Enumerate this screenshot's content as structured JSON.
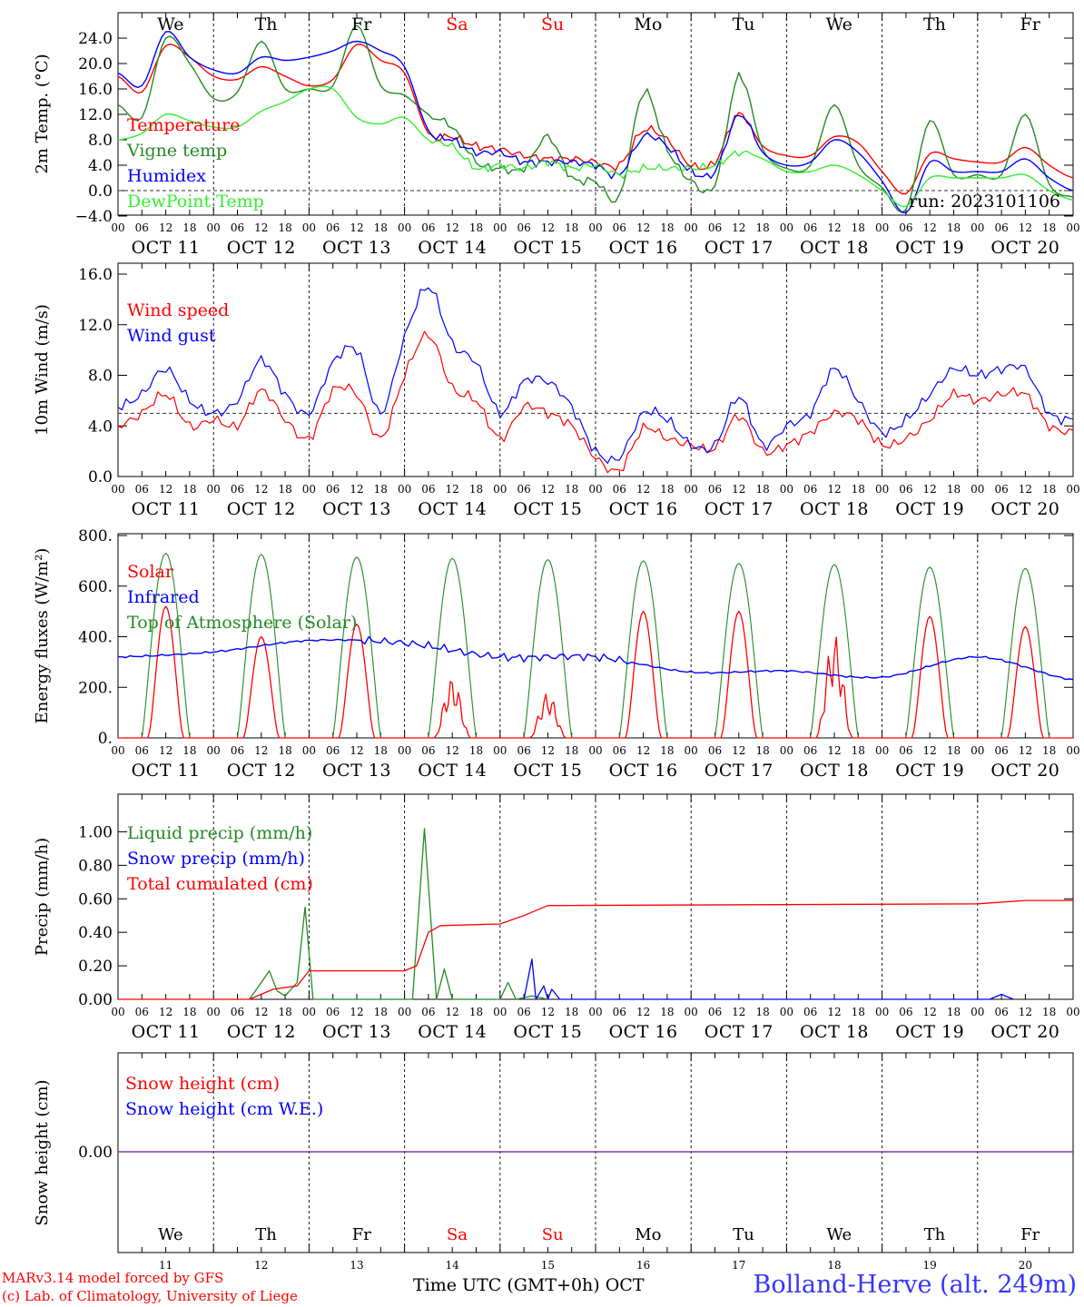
{
  "colors": {
    "temperature": "#ff0000",
    "vigne": "#228b22",
    "humidex": "#0000ff",
    "dewpoint": "#33ee33",
    "weekend": "#ff0000",
    "snow_cm": "#ff0000",
    "snow_we": "#0000ff",
    "station": "#3535ff"
  },
  "x_axis": {
    "hour_ticks": [
      "00",
      "06",
      "12",
      "18"
    ],
    "dates": [
      "OCT 11",
      "OCT 12",
      "OCT 13",
      "OCT 14",
      "OCT 15",
      "OCT 16",
      "OCT 17",
      "OCT 18",
      "OCT 19",
      "OCT 20"
    ],
    "weekdays": [
      "We",
      "Th",
      "Fr",
      "Sa",
      "Su",
      "Mo",
      "Tu",
      "We",
      "Th",
      "Fr"
    ],
    "weekend_days": [
      "Sa",
      "Su"
    ],
    "day_numbers": [
      "11",
      "12",
      "13",
      "14",
      "15",
      "16",
      "17",
      "18",
      "19",
      "20"
    ]
  },
  "footer": {
    "model": "MARv3.14 model forced by GFS",
    "copyright": "(c) Lab. of Climatology, University of Liege",
    "axis_title": "Time UTC (GMT+0h) OCT",
    "station": "Bolland-Herve (alt. 249m)"
  },
  "chart_data": [
    {
      "type": "line",
      "ylabel": "2m Temp. (°C)",
      "ylim": [
        -4,
        26
      ],
      "yticks": [
        -4,
        0,
        4,
        8,
        12,
        16,
        20,
        24
      ],
      "ytick_labels": [
        "−4.0",
        "0.0",
        "4.0",
        "8.0",
        "12.0",
        "16.0",
        "20.0",
        "24.0"
      ],
      "reference_line": 0,
      "annotation": "run: 2023101106",
      "x": [
        "2023-10-11 00:00",
        "2023-10-11 06:00",
        "2023-10-11 12:00",
        "2023-10-11 18:00",
        "2023-10-12 00:00",
        "2023-10-12 06:00",
        "2023-10-12 12:00",
        "2023-10-12 18:00",
        "2023-10-13 00:00",
        "2023-10-13 06:00",
        "2023-10-13 12:00",
        "2023-10-13 18:00",
        "2023-10-14 00:00",
        "2023-10-14 06:00",
        "2023-10-14 12:00",
        "2023-10-14 18:00",
        "2023-10-15 00:00",
        "2023-10-15 06:00",
        "2023-10-15 12:00",
        "2023-10-15 18:00",
        "2023-10-16 00:00",
        "2023-10-16 06:00",
        "2023-10-16 12:00",
        "2023-10-16 18:00",
        "2023-10-17 00:00",
        "2023-10-17 06:00",
        "2023-10-17 12:00",
        "2023-10-17 18:00",
        "2023-10-18 00:00",
        "2023-10-18 06:00",
        "2023-10-18 12:00",
        "2023-10-18 18:00",
        "2023-10-19 00:00",
        "2023-10-19 06:00",
        "2023-10-19 12:00",
        "2023-10-19 18:00",
        "2023-10-20 00:00",
        "2023-10-20 06:00",
        "2023-10-20 12:00",
        "2023-10-20 18:00",
        "2023-10-21 00:00"
      ],
      "series": [
        {
          "name": "Temperature",
          "color": "#ff0000",
          "values": [
            18.0,
            15.5,
            22.8,
            21.0,
            18.0,
            17.5,
            19.5,
            18.0,
            16.5,
            17.5,
            23.0,
            20.5,
            18.5,
            9.0,
            8.5,
            7.0,
            6.5,
            5.5,
            5.0,
            5.0,
            4.5,
            4.0,
            9.5,
            8.0,
            4.0,
            4.5,
            12.0,
            7.0,
            5.5,
            5.5,
            8.5,
            7.5,
            3.0,
            -0.5,
            5.8,
            5.0,
            4.5,
            4.5,
            6.8,
            4.0,
            2.0
          ]
        },
        {
          "name": "Vigne temp",
          "color": "#228b22",
          "values": [
            13.5,
            11.5,
            24.0,
            20.0,
            14.5,
            15.5,
            23.5,
            16.0,
            16.0,
            16.5,
            26.0,
            16.5,
            15.0,
            12.0,
            10.0,
            4.5,
            3.5,
            3.5,
            8.5,
            2.0,
            1.5,
            -1.0,
            15.5,
            6.5,
            1.5,
            1.0,
            18.0,
            6.5,
            3.5,
            4.0,
            13.5,
            4.0,
            0.5,
            -3.0,
            11.0,
            2.5,
            2.5,
            2.5,
            12.0,
            1.0,
            -1.0
          ]
        },
        {
          "name": "Humidex",
          "color": "#0000ff",
          "values": [
            18.5,
            16.5,
            25.0,
            21.0,
            19.0,
            18.5,
            21.0,
            20.5,
            21.0,
            22.0,
            23.5,
            22.0,
            19.5,
            9.5,
            8.0,
            6.0,
            6.0,
            4.5,
            4.5,
            4.5,
            4.0,
            2.5,
            8.5,
            7.0,
            3.0,
            3.0,
            12.0,
            6.0,
            4.0,
            4.5,
            8.0,
            6.0,
            1.5,
            -3.5,
            4.5,
            3.0,
            3.0,
            3.0,
            5.0,
            2.0,
            0.0
          ]
        },
        {
          "name": "DewPoint Temp",
          "color": "#33ee33",
          "values": [
            8.0,
            9.0,
            12.0,
            11.0,
            10.0,
            10.0,
            12.5,
            14.0,
            16.0,
            16.0,
            11.5,
            10.5,
            11.5,
            8.0,
            7.0,
            3.5,
            4.0,
            3.5,
            4.5,
            3.5,
            4.0,
            2.5,
            3.5,
            3.5,
            3.5,
            4.0,
            6.0,
            5.0,
            3.0,
            3.0,
            4.0,
            2.5,
            0.0,
            -2.5,
            2.0,
            2.0,
            2.0,
            2.0,
            2.5,
            0.0,
            -1.5
          ]
        }
      ]
    },
    {
      "type": "line",
      "ylabel": "10m Wind (m/s)",
      "ylim": [
        0,
        16
      ],
      "yticks": [
        0,
        4,
        8,
        12,
        16
      ],
      "ytick_labels": [
        "0.0",
        "4.0",
        "8.0",
        "12.0",
        "16.0"
      ],
      "reference_line": 5,
      "x": [
        "2023-10-11 00:00",
        "2023-10-11 06:00",
        "2023-10-11 12:00",
        "2023-10-11 18:00",
        "2023-10-12 00:00",
        "2023-10-12 06:00",
        "2023-10-12 12:00",
        "2023-10-12 18:00",
        "2023-10-13 00:00",
        "2023-10-13 06:00",
        "2023-10-13 12:00",
        "2023-10-13 18:00",
        "2023-10-14 00:00",
        "2023-10-14 06:00",
        "2023-10-14 12:00",
        "2023-10-14 18:00",
        "2023-10-15 00:00",
        "2023-10-15 06:00",
        "2023-10-15 12:00",
        "2023-10-15 18:00",
        "2023-10-16 00:00",
        "2023-10-16 06:00",
        "2023-10-16 12:00",
        "2023-10-16 18:00",
        "2023-10-17 00:00",
        "2023-10-17 06:00",
        "2023-10-17 12:00",
        "2023-10-17 18:00",
        "2023-10-18 00:00",
        "2023-10-18 06:00",
        "2023-10-18 12:00",
        "2023-10-18 18:00",
        "2023-10-19 00:00",
        "2023-10-19 06:00",
        "2023-10-19 12:00",
        "2023-10-19 18:00",
        "2023-10-20 00:00",
        "2023-10-20 06:00",
        "2023-10-20 12:00",
        "2023-10-20 18:00",
        "2023-10-21 00:00"
      ],
      "series": [
        {
          "name": "Wind speed",
          "color": "#ff0000",
          "values": [
            4.0,
            5.0,
            6.5,
            4.0,
            4.5,
            4.0,
            6.8,
            4.5,
            3.0,
            6.8,
            6.5,
            3.0,
            8.0,
            11.2,
            7.0,
            6.0,
            3.0,
            5.5,
            5.0,
            4.0,
            1.5,
            0.5,
            3.8,
            3.0,
            2.5,
            2.2,
            4.8,
            2.0,
            2.5,
            3.5,
            5.0,
            4.5,
            2.5,
            3.0,
            4.5,
            6.5,
            6.0,
            6.5,
            6.5,
            4.0,
            3.5
          ]
        },
        {
          "name": "Wind gust",
          "color": "#0000ff",
          "values": [
            5.5,
            6.5,
            8.5,
            6.0,
            5.0,
            6.0,
            9.2,
            6.5,
            5.0,
            9.0,
            10.0,
            5.0,
            11.0,
            15.0,
            10.5,
            9.0,
            5.0,
            7.5,
            7.5,
            5.5,
            2.0,
            1.5,
            5.0,
            4.5,
            2.5,
            2.5,
            6.3,
            2.5,
            4.0,
            5.0,
            8.5,
            6.0,
            3.5,
            4.5,
            6.5,
            8.5,
            8.0,
            8.5,
            8.5,
            5.0,
            4.5
          ]
        }
      ]
    },
    {
      "type": "line",
      "ylabel": "Energy fluxes (W/m²)",
      "ylim": [
        0,
        800
      ],
      "yticks": [
        0,
        200,
        400,
        600,
        800
      ],
      "ytick_labels": [
        "0.",
        "200.",
        "400.",
        "600.",
        "800."
      ],
      "peak_hour_utc": 12,
      "solar_daily_peaks": [
        520,
        400,
        450,
        240,
        180,
        500,
        500,
        410,
        480,
        440
      ],
      "toa_daily_peaks": [
        730,
        725,
        715,
        710,
        705,
        700,
        690,
        685,
        675,
        670
      ],
      "infrared_daily": [
        320,
        340,
        385,
        375,
        320,
        320,
        260,
        265,
        240,
        320
      ],
      "infrared_end": 230,
      "series": [
        {
          "name": "Solar",
          "color": "#ff0000"
        },
        {
          "name": "Infrared",
          "color": "#0000ff"
        },
        {
          "name": "Top of Atmosphere (Solar)",
          "color": "#228b22"
        }
      ]
    },
    {
      "type": "line",
      "ylabel": "Precip (mm/h)",
      "ylim": [
        0,
        1.1
      ],
      "yticks": [
        0,
        0.2,
        0.4,
        0.6,
        0.8,
        1.0
      ],
      "ytick_labels": [
        "0.00",
        "0.20",
        "0.40",
        "0.60",
        "0.80",
        "1.00"
      ],
      "series": [
        {
          "name": "Liquid precip (mm/h)",
          "color": "#228b22",
          "points": [
            [
              "2023-10-12 09:00",
              0.0
            ],
            [
              "2023-10-12 12:00",
              0.1
            ],
            [
              "2023-10-12 14:00",
              0.17
            ],
            [
              "2023-10-12 16:00",
              0.05
            ],
            [
              "2023-10-12 18:00",
              0.02
            ],
            [
              "2023-10-12 21:00",
              0.1
            ],
            [
              "2023-10-12 23:00",
              0.55
            ],
            [
              "2023-10-13 01:00",
              0.0
            ],
            [
              "2023-10-14 02:00",
              0.0
            ],
            [
              "2023-10-14 05:00",
              1.02
            ],
            [
              "2023-10-14 08:00",
              0.0
            ],
            [
              "2023-10-14 10:00",
              0.18
            ],
            [
              "2023-10-14 12:00",
              0.0
            ],
            [
              "2023-10-15 00:00",
              0.0
            ],
            [
              "2023-10-15 02:00",
              0.1
            ],
            [
              "2023-10-15 04:00",
              0.0
            ],
            [
              "2023-10-15 08:00",
              0.02
            ],
            [
              "2023-10-15 12:00",
              0.0
            ]
          ]
        },
        {
          "name": "Snow precip (mm/h)",
          "color": "#0000ff",
          "points": [
            [
              "2023-10-15 06:00",
              0.0
            ],
            [
              "2023-10-15 08:00",
              0.24
            ],
            [
              "2023-10-15 09:00",
              0.0
            ],
            [
              "2023-10-15 11:00",
              0.08
            ],
            [
              "2023-10-15 12:00",
              0.0
            ],
            [
              "2023-10-15 13:00",
              0.06
            ],
            [
              "2023-10-15 15:00",
              0.0
            ],
            [
              "2023-10-20 03:00",
              0.0
            ],
            [
              "2023-10-20 06:00",
              0.03
            ],
            [
              "2023-10-20 09:00",
              0.0
            ]
          ]
        },
        {
          "name": "Total cumulated (cm)",
          "color": "#ff0000",
          "points": [
            [
              "2023-10-11 00:00",
              0.0
            ],
            [
              "2023-10-12 09:00",
              0.0
            ],
            [
              "2023-10-12 15:00",
              0.06
            ],
            [
              "2023-10-12 21:00",
              0.08
            ],
            [
              "2023-10-13 00:00",
              0.17
            ],
            [
              "2023-10-14 00:00",
              0.17
            ],
            [
              "2023-10-14 03:00",
              0.2
            ],
            [
              "2023-10-14 06:00",
              0.4
            ],
            [
              "2023-10-14 09:00",
              0.44
            ],
            [
              "2023-10-15 00:00",
              0.45
            ],
            [
              "2023-10-15 06:00",
              0.5
            ],
            [
              "2023-10-15 12:00",
              0.56
            ],
            [
              "2023-10-20 00:00",
              0.57
            ],
            [
              "2023-10-20 12:00",
              0.59
            ],
            [
              "2023-10-21 00:00",
              0.59
            ]
          ]
        }
      ]
    },
    {
      "type": "line",
      "ylabel": "Snow height (cm)",
      "ytick_labels": [
        "0.00"
      ],
      "series": [
        {
          "name": "Snow height (cm)",
          "color": "#ff0000",
          "values": [
            0.0,
            0.0
          ]
        },
        {
          "name": "Snow height (cm W.E.)",
          "color": "#0000ff",
          "values": [
            0.0,
            0.0
          ]
        }
      ]
    }
  ]
}
